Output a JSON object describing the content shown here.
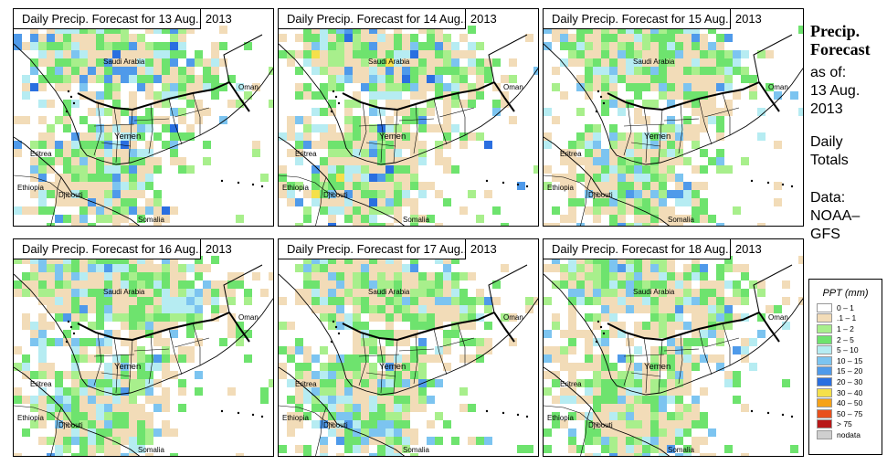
{
  "panels": [
    {
      "title": "Daily Precip. Forecast for  13 Aug., 2013"
    },
    {
      "title": "Daily Precip. Forecast for  14 Aug., 2013"
    },
    {
      "title": "Daily Precip. Forecast for  15 Aug., 2013"
    },
    {
      "title": "Daily Precip. Forecast for  16 Aug., 2013"
    },
    {
      "title": "Daily Precip. Forecast for  17 Aug., 2013"
    },
    {
      "title": "Daily Precip. Forecast for  18 Aug., 2013"
    }
  ],
  "map_labels": {
    "saudi": "Saudi Arabia",
    "oman": "Oman",
    "yemen": "Yemen",
    "eritrea": "Eritrea",
    "ethiopia": "Ethiopia",
    "djibouti": "Djibouti",
    "somalia": "Somalia"
  },
  "sidebar": {
    "title1": "Precip.",
    "title2": "Forecast",
    "asof": "as of:",
    "date1": "13 Aug.",
    "date2": "2013",
    "daily1": "Daily",
    "daily2": "Totals",
    "data1": "Data:",
    "data2": "NOAA–",
    "data3": "GFS"
  },
  "legend": {
    "title": "PPT (mm)",
    "items": [
      {
        "label": "0 – 1",
        "color": "#ffffff"
      },
      {
        "label": ".1 – 1",
        "color": "#f2dcb8"
      },
      {
        "label": "1 – 2",
        "color": "#a8ef8c"
      },
      {
        "label": "2 – 5",
        "color": "#6ee36e"
      },
      {
        "label": "5 – 10",
        "color": "#b6ecf2"
      },
      {
        "label": "10 – 15",
        "color": "#7cc4f0"
      },
      {
        "label": "15 – 20",
        "color": "#4f9aea"
      },
      {
        "label": "20 – 30",
        "color": "#2a6fe0"
      },
      {
        "label": "30 – 40",
        "color": "#f5e04a"
      },
      {
        "label": "40 – 50",
        "color": "#f5a218"
      },
      {
        "label": "50 – 75",
        "color": "#e8501c"
      },
      {
        "label": "> 75",
        "color": "#b81818"
      },
      {
        "label": "nodata",
        "color": "#cfcfcf"
      }
    ]
  }
}
